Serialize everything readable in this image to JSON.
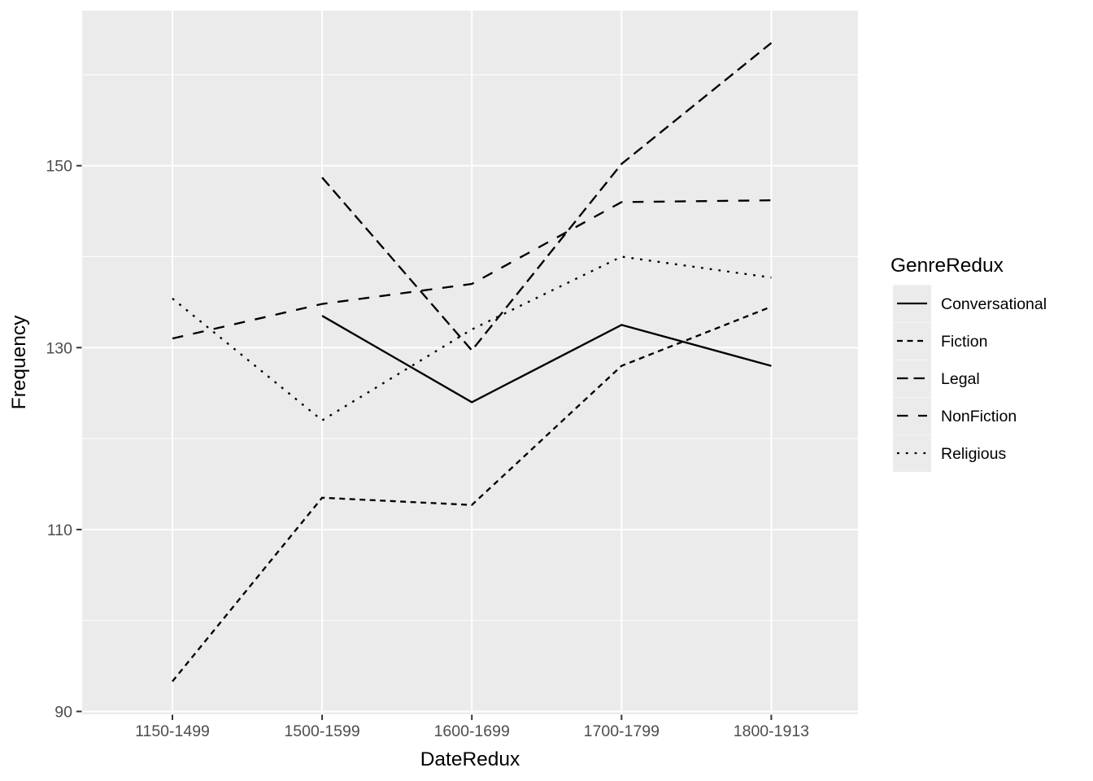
{
  "chart_data": {
    "type": "line",
    "title": "",
    "xlabel": "DateRedux",
    "ylabel": "Frequency",
    "legend_title": "GenreRedux",
    "legend_position": "right",
    "grid": true,
    "categories": [
      "1150-1499",
      "1500-1599",
      "1600-1699",
      "1700-1799",
      "1800-1913"
    ],
    "series": [
      {
        "name": "Conversational",
        "linetype": "solid",
        "values": [
          null,
          133.5,
          124.0,
          132.5,
          128.0
        ]
      },
      {
        "name": "Fiction",
        "linetype": "short-dash",
        "values": [
          93.3,
          113.5,
          112.7,
          128.0,
          134.5
        ]
      },
      {
        "name": "Legal",
        "linetype": "dash",
        "values": [
          null,
          148.7,
          129.7,
          150.2,
          163.5
        ]
      },
      {
        "name": "NonFiction",
        "linetype": "long-dash",
        "values": [
          131.0,
          134.8,
          137.0,
          146.0,
          146.2
        ]
      },
      {
        "name": "Religious",
        "linetype": "dotted",
        "values": [
          135.4,
          122.0,
          132.0,
          140.0,
          137.7
        ]
      }
    ],
    "y_ticks": [
      90,
      110,
      130,
      150
    ],
    "y_tick_labels": [
      "90",
      "110",
      "130",
      "150"
    ],
    "y_minor_ticks": [
      100,
      120,
      140,
      160
    ],
    "ylim": [
      89.6,
      167.0
    ],
    "colors": {
      "panel_background": "#EBEBEB",
      "gridline": "#FFFFFF",
      "series_line": "#000000",
      "tick_label": "#4D4D4D",
      "axis_title": "#000000",
      "tick_mark": "#333333",
      "legend_key_background": "#EBEBEB",
      "legend_text": "#000000",
      "page_background": "#FFFFFF"
    }
  }
}
